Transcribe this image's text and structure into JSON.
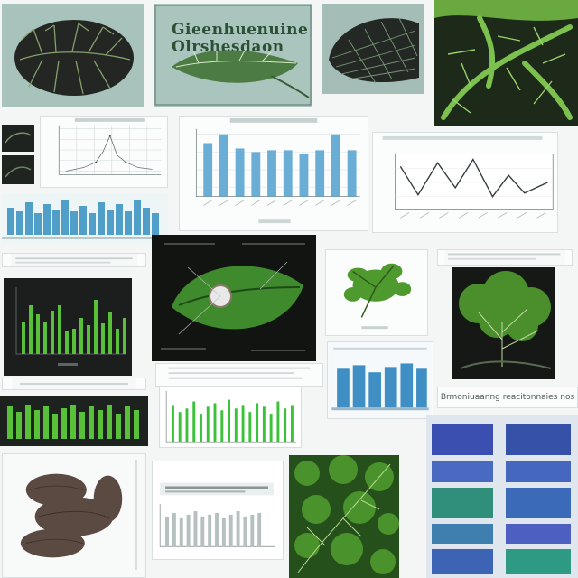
{
  "collage": {
    "title_overlay_line1": "Gieenhuenuine",
    "title_overlay_line2": "Olrshesdaon",
    "bottom_caption": "Brmoniuaanng reacitonnaies nos"
  },
  "colors": {
    "leaf_green": "#4f9a2e",
    "bar_blue": "#6aaed6",
    "bar_green": "#59c03a",
    "deep_blue": "#3b4fb0",
    "line_dark": "#353a3c"
  }
}
